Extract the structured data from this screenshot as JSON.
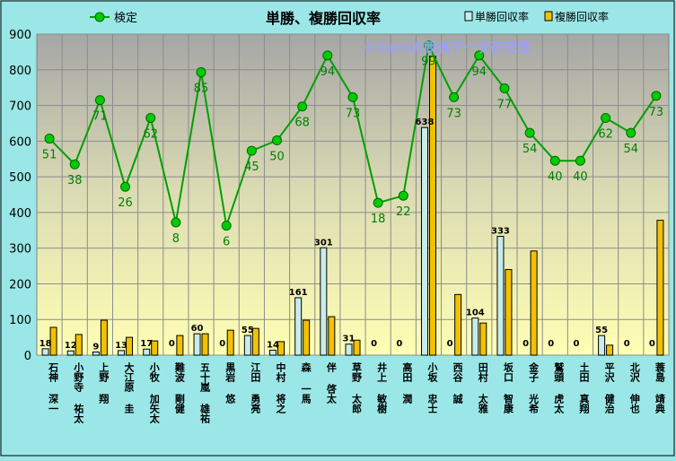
{
  "chart_data": {
    "type": "bar",
    "title": "単勝、複勝回収率",
    "watermark": "©Caniの競馬データ研究室",
    "ylim": [
      0,
      900
    ],
    "yticks": [
      0,
      100,
      200,
      300,
      400,
      500,
      600,
      700,
      800,
      900
    ],
    "grid": true,
    "legend": {
      "placement": "top"
    },
    "categories": [
      "石神 深一",
      "小野寺 祐太",
      "上野 翔",
      "大江原 圭",
      "小牧 加矢太",
      "難波 剛健",
      "五十嵐 雄祐",
      "黒岩 悠",
      "江田 勇亮",
      "中村 将之",
      "森 一馬",
      "伴 啓太",
      "草野 太郎",
      "井上 敏樹",
      "高田 潤",
      "小坂 忠士",
      "西谷 誠",
      "田村 太雅",
      "坂口 智康",
      "金子 光希",
      "鷲頭 虎太",
      "土田 真翔",
      "平沢 健治",
      "北沢 伸也",
      "蓑島 靖典"
    ],
    "series": [
      {
        "name": "単勝回収率",
        "type": "bar",
        "color": "#c8ecec",
        "values": [
          18,
          12,
          9,
          13,
          17,
          0,
          60,
          0,
          55,
          14,
          161,
          301,
          31,
          0,
          0,
          638,
          0,
          104,
          333,
          0,
          0,
          0,
          55,
          0,
          0
        ],
        "labels": [
          "18",
          "12",
          "9",
          "13",
          "17",
          "0",
          "60",
          "0",
          "55",
          "14",
          "161",
          "301",
          "31",
          "0",
          "0",
          "638",
          "0",
          "104",
          "333",
          "0",
          "0",
          "0",
          "55",
          "0",
          "0"
        ]
      },
      {
        "name": "複勝回収率",
        "type": "bar",
        "color": "#f2c200",
        "values": [
          78,
          58,
          98,
          50,
          40,
          55,
          60,
          70,
          75,
          38,
          98,
          108,
          42,
          0,
          0,
          838,
          170,
          90,
          240,
          292,
          0,
          0,
          28,
          0,
          378
        ]
      },
      {
        "name": "検定",
        "type": "line",
        "color": "#00a000",
        "values": [
          607,
          535,
          715,
          472,
          665,
          372,
          793,
          363,
          573,
          602,
          697,
          840,
          723,
          427,
          447,
          868,
          723,
          840,
          748,
          623,
          545,
          545,
          665,
          623,
          727
        ],
        "labels": [
          "51",
          "38",
          "71",
          "26",
          "62",
          "8",
          "85",
          "6",
          "45",
          "50",
          "68",
          "94",
          "73",
          "18",
          "22",
          "99",
          "73",
          "94",
          "77",
          "54",
          "40",
          "40",
          "62",
          "54",
          "73"
        ]
      }
    ]
  }
}
